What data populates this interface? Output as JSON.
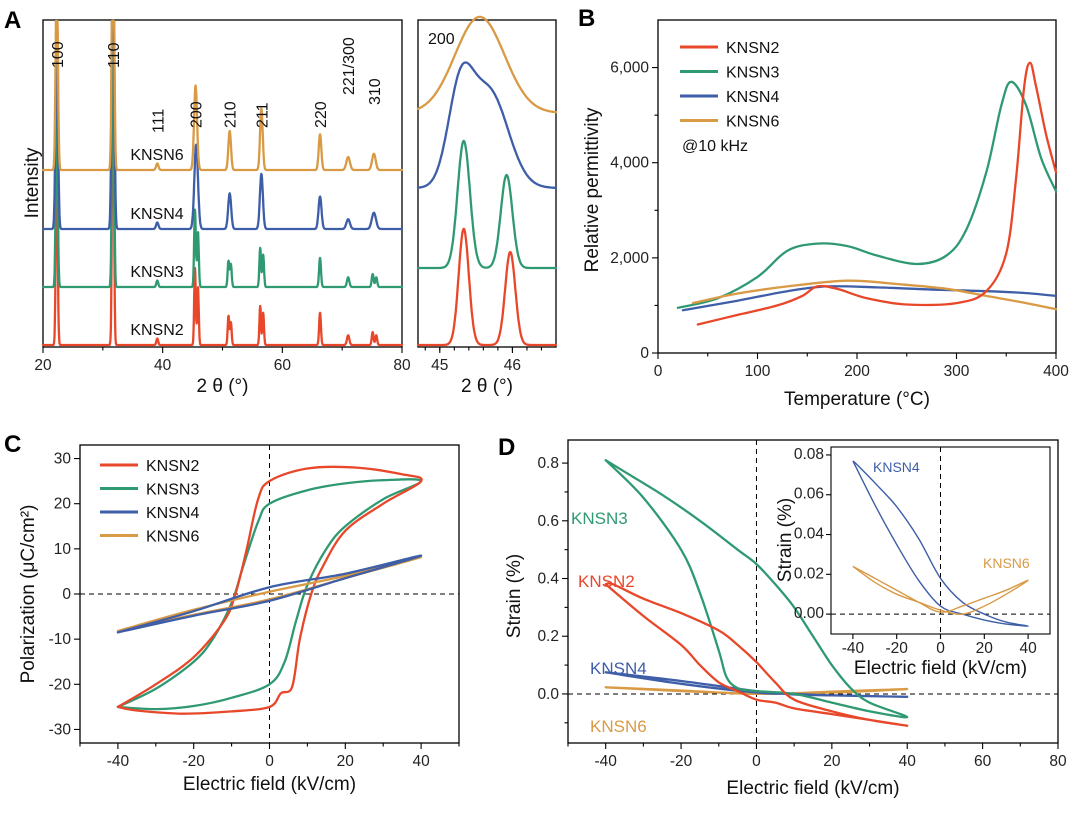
{
  "colors": {
    "KNSN2": "#e8472a",
    "KNSN3": "#2f9a72",
    "KNSN4": "#3e5ea8",
    "KNSN6": "#d99a45"
  },
  "panels": {
    "a": "A",
    "b": "B",
    "c": "C",
    "d": "D"
  },
  "chart_data": [
    {
      "id": "A-main",
      "type": "line",
      "title": "",
      "xlabel": "2 θ (°)",
      "ylabel": "Intensity",
      "xlim": [
        20,
        80
      ],
      "xticks": [
        20,
        40,
        60,
        80
      ],
      "peak_labels": [
        {
          "label": "100",
          "x": 22.3
        },
        {
          "label": "110",
          "x": 31.7
        },
        {
          "label": "111",
          "x": 39.1
        },
        {
          "label": "200",
          "x": 45.5
        },
        {
          "label": "210",
          "x": 51.2
        },
        {
          "label": "211",
          "x": 56.5
        },
        {
          "label": "220",
          "x": 66.3
        },
        {
          "label": "221/300",
          "x": 71.0
        },
        {
          "label": "310",
          "x": 75.3
        }
      ],
      "series": [
        {
          "name": "KNSN2",
          "peaks": [
            [
              22.3,
              0.62,
              0.15
            ],
            [
              31.7,
              1.0,
              0.15
            ],
            [
              39.1,
              0.02,
              0.15
            ],
            [
              45.4,
              0.24,
              0.13
            ],
            [
              45.9,
              0.18,
              0.13
            ],
            [
              51.0,
              0.09,
              0.13
            ],
            [
              51.4,
              0.07,
              0.13
            ],
            [
              56.3,
              0.12,
              0.13
            ],
            [
              56.8,
              0.1,
              0.13
            ],
            [
              66.3,
              0.1,
              0.15
            ],
            [
              71.0,
              0.03,
              0.2
            ],
            [
              75.1,
              0.04,
              0.15
            ],
            [
              75.7,
              0.03,
              0.15
            ]
          ]
        },
        {
          "name": "KNSN3",
          "peaks": [
            [
              22.3,
              0.6,
              0.16
            ],
            [
              31.7,
              1.0,
              0.16
            ],
            [
              39.1,
              0.02,
              0.16
            ],
            [
              45.4,
              0.24,
              0.14
            ],
            [
              45.9,
              0.17,
              0.14
            ],
            [
              51.0,
              0.08,
              0.14
            ],
            [
              51.4,
              0.07,
              0.14
            ],
            [
              56.3,
              0.12,
              0.14
            ],
            [
              56.8,
              0.1,
              0.14
            ],
            [
              66.3,
              0.09,
              0.16
            ],
            [
              71.0,
              0.03,
              0.2
            ],
            [
              75.1,
              0.04,
              0.16
            ],
            [
              75.7,
              0.03,
              0.16
            ]
          ]
        },
        {
          "name": "KNSN4",
          "peaks": [
            [
              22.3,
              0.6,
              0.2
            ],
            [
              31.7,
              1.0,
              0.2
            ],
            [
              39.1,
              0.02,
              0.2
            ],
            [
              45.6,
              0.26,
              0.3
            ],
            [
              51.2,
              0.11,
              0.25
            ],
            [
              56.5,
              0.17,
              0.25
            ],
            [
              66.3,
              0.1,
              0.25
            ],
            [
              71.0,
              0.03,
              0.3
            ],
            [
              75.3,
              0.05,
              0.35
            ]
          ]
        },
        {
          "name": "KNSN6",
          "peaks": [
            [
              22.3,
              0.65,
              0.18
            ],
            [
              31.7,
              1.0,
              0.18
            ],
            [
              39.1,
              0.02,
              0.2
            ],
            [
              45.5,
              0.26,
              0.25
            ],
            [
              51.2,
              0.12,
              0.22
            ],
            [
              56.5,
              0.19,
              0.22
            ],
            [
              66.3,
              0.11,
              0.22
            ],
            [
              71.0,
              0.04,
              0.3
            ],
            [
              75.3,
              0.05,
              0.3
            ]
          ]
        }
      ]
    },
    {
      "id": "A-zoom",
      "type": "line",
      "title": "200",
      "xlabel": "2 θ (°)",
      "xlim": [
        44.7,
        46.6
      ],
      "xticks": [
        45,
        46
      ],
      "series": [
        {
          "name": "KNSN2",
          "peaks": [
            [
              45.33,
              0.75,
              0.07
            ],
            [
              45.97,
              0.6,
              0.07
            ]
          ]
        },
        {
          "name": "KNSN3",
          "peaks": [
            [
              45.33,
              0.82,
              0.085
            ],
            [
              45.92,
              0.6,
              0.08
            ]
          ]
        },
        {
          "name": "KNSN4",
          "peaks": [
            [
              45.28,
              0.58,
              0.17
            ],
            [
              45.68,
              0.62,
              0.26
            ]
          ]
        },
        {
          "name": "KNSN6",
          "peaks": [
            [
              45.55,
              0.62,
              0.34
            ]
          ]
        }
      ]
    },
    {
      "id": "B",
      "type": "line",
      "title": "",
      "xlabel": "Temperature (°C)",
      "ylabel": "Relative permittivity",
      "xlim": [
        0,
        400
      ],
      "ylim": [
        0,
        7000
      ],
      "xticks": [
        0,
        100,
        200,
        300,
        400
      ],
      "yticks": [
        0,
        2000,
        4000,
        6000
      ],
      "ytick_labels": [
        "0",
        "2,000",
        "4,000",
        "6,000"
      ],
      "legend_location": "top-left",
      "annotation": "@10 kHz",
      "series": [
        {
          "name": "KNSN2",
          "x": [
            40,
            80,
            120,
            145,
            160,
            180,
            210,
            250,
            300,
            330,
            350,
            360,
            368,
            374,
            380,
            390,
            400
          ],
          "y": [
            600,
            800,
            1000,
            1200,
            1400,
            1350,
            1150,
            1020,
            1050,
            1300,
            2100,
            3700,
            5600,
            6100,
            5600,
            4600,
            3800
          ]
        },
        {
          "name": "KNSN3",
          "x": [
            20,
            60,
            100,
            130,
            160,
            190,
            220,
            260,
            290,
            310,
            330,
            345,
            355,
            370,
            385,
            400
          ],
          "y": [
            950,
            1150,
            1600,
            2150,
            2300,
            2250,
            2050,
            1870,
            2050,
            2600,
            3800,
            5200,
            5700,
            5200,
            4100,
            3400
          ]
        },
        {
          "name": "KNSN4",
          "x": [
            25,
            80,
            130,
            170,
            220,
            280,
            330,
            370,
            400
          ],
          "y": [
            900,
            1100,
            1300,
            1400,
            1380,
            1330,
            1300,
            1260,
            1200
          ]
        },
        {
          "name": "KNSN6",
          "x": [
            35,
            80,
            130,
            190,
            240,
            290,
            330,
            370,
            400
          ],
          "y": [
            1050,
            1250,
            1400,
            1520,
            1450,
            1350,
            1200,
            1050,
            920
          ]
        }
      ]
    },
    {
      "id": "C",
      "type": "line",
      "title": "",
      "xlabel": "Electric field (kV/cm)",
      "ylabel": "Polarization (μC/cm²)",
      "xlim": [
        -50,
        50
      ],
      "ylim": [
        -33,
        33
      ],
      "xticks": [
        -40,
        -20,
        0,
        20,
        40
      ],
      "yticks": [
        -30,
        -20,
        -10,
        0,
        10,
        20,
        30
      ],
      "legend_location": "top-left",
      "series": [
        {
          "name": "KNSN2",
          "x": [
            -40,
            -30,
            -20,
            -12,
            -9,
            -6,
            -3,
            0,
            10,
            23,
            35,
            40,
            30,
            20,
            14,
            11,
            8,
            6,
            3,
            0,
            -10,
            -23,
            -35,
            -40
          ],
          "y": [
            -25,
            -20,
            -14,
            -6,
            0,
            10,
            21,
            25,
            27.8,
            28,
            26.5,
            25,
            20,
            14,
            6,
            0,
            -10,
            -20.5,
            -22,
            -25,
            -26,
            -26.5,
            -25.8,
            -25
          ]
        },
        {
          "name": "KNSN3",
          "x": [
            -40,
            -30,
            -20,
            -15,
            -10,
            -7,
            -3,
            0,
            10,
            20,
            30,
            40,
            30,
            20,
            15,
            10,
            7,
            4,
            0,
            -10,
            -20,
            -30,
            -40
          ],
          "y": [
            -25,
            -21,
            -15,
            -10,
            -2,
            6,
            16,
            20,
            23,
            24.5,
            25.2,
            25,
            21,
            15,
            10,
            2,
            -6,
            -15,
            -20,
            -23,
            -24.8,
            -25.5,
            -25
          ]
        },
        {
          "name": "KNSN4",
          "x": [
            -40,
            -20,
            0,
            20,
            40,
            20,
            0,
            -20,
            -40
          ],
          "y": [
            -8.5,
            -4.8,
            -1.5,
            3.5,
            8.5,
            4.5,
            1.5,
            -3.8,
            -8.5
          ]
        },
        {
          "name": "KNSN6",
          "x": [
            -40,
            -20,
            0,
            20,
            40,
            20,
            0,
            -20,
            -40
          ],
          "y": [
            -8.2,
            -4.6,
            -1.2,
            3.5,
            8.2,
            4.0,
            0.5,
            -3.5,
            -8.2
          ]
        }
      ]
    },
    {
      "id": "D",
      "type": "line",
      "title": "",
      "xlabel": "Electric field (kV/cm)",
      "ylabel": "Strain (%)",
      "xlim": [
        -50,
        80
      ],
      "ylim": [
        -0.17,
        0.88
      ],
      "xticks": [
        -40,
        -20,
        0,
        20,
        40,
        60,
        80
      ],
      "yticks": [
        0.0,
        0.2,
        0.4,
        0.6,
        0.8
      ],
      "ytick_labels": [
        "0.0",
        "0.2",
        "0.4",
        "0.6",
        "0.8"
      ],
      "series": [
        {
          "name": "KNSN2",
          "x": [
            -40,
            -38,
            -30,
            -20,
            -10,
            -5,
            0,
            5,
            10,
            20,
            30,
            40,
            30,
            20,
            10,
            5,
            0,
            -5,
            -10,
            -15,
            -20,
            -30,
            -40
          ],
          "y": [
            0.38,
            0.38,
            0.33,
            0.28,
            0.22,
            0.17,
            0.11,
            0.04,
            -0.02,
            -0.06,
            -0.09,
            -0.11,
            -0.09,
            -0.07,
            -0.05,
            -0.03,
            -0.02,
            0.01,
            0.04,
            0.1,
            0.17,
            0.27,
            0.38
          ]
        },
        {
          "name": "KNSN3",
          "x": [
            -40,
            -35,
            -25,
            -15,
            -5,
            0,
            5,
            10,
            15,
            20,
            25,
            30,
            40,
            30,
            20,
            10,
            0,
            -5,
            -8,
            -10,
            -15,
            -20,
            -30,
            -40
          ],
          "y": [
            0.81,
            0.77,
            0.69,
            0.6,
            0.5,
            0.45,
            0.38,
            0.3,
            0.2,
            0.1,
            0.02,
            -0.03,
            -0.08,
            -0.06,
            -0.03,
            0.0,
            0.01,
            0.02,
            0.06,
            0.15,
            0.35,
            0.5,
            0.68,
            0.81
          ]
        },
        {
          "name": "KNSN4",
          "x": [
            -40,
            -20,
            0,
            10,
            20,
            40,
            20,
            10,
            0,
            -20,
            -40
          ],
          "y": [
            0.075,
            0.045,
            0.01,
            -0.002,
            -0.005,
            -0.01,
            -0.005,
            0.0,
            0.005,
            0.035,
            0.075
          ]
        },
        {
          "name": "KNSN6",
          "x": [
            -40,
            -20,
            0,
            20,
            40,
            20,
            0,
            -20,
            -40
          ],
          "y": [
            0.023,
            0.012,
            0.0,
            0.008,
            0.017,
            0.005,
            0.002,
            0.01,
            0.023
          ]
        }
      ],
      "series_labels": {
        "KNSN3": "KNSN3",
        "KNSN2": "KNSN2",
        "KNSN4": "KNSN4",
        "KNSN6": "KNSN6"
      },
      "inset": {
        "xlabel": "Electric field (kV/cm)",
        "ylabel": "Strain (%)",
        "xlim": [
          -50,
          50
        ],
        "ylim": [
          -0.01,
          0.084
        ],
        "xticks": [
          -40,
          -20,
          0,
          20,
          40
        ],
        "yticks": [
          0.0,
          0.02,
          0.04,
          0.06,
          0.08
        ],
        "ytick_labels": [
          "0.00",
          "0.02",
          "0.04",
          "0.06",
          "0.08"
        ],
        "series": [
          {
            "name": "KNSN4",
            "x": [
              -40,
              -38,
              -30,
              -20,
              -10,
              0,
              10,
              20,
              30,
              40,
              30,
              20,
              10,
              0,
              -10,
              -20,
              -30,
              -40
            ],
            "y": [
              0.077,
              0.075,
              0.066,
              0.054,
              0.038,
              0.018,
              0.006,
              0.0,
              -0.004,
              -0.006,
              -0.005,
              -0.003,
              0.0,
              0.004,
              0.017,
              0.035,
              0.055,
              0.077
            ]
          },
          {
            "name": "KNSN6",
            "x": [
              -40,
              -30,
              -20,
              -10,
              0,
              10,
              20,
              30,
              40,
              30,
              20,
              10,
              0,
              -10,
              -20,
              -30,
              -40
            ],
            "y": [
              0.024,
              0.018,
              0.012,
              0.006,
              0.001,
              0.004,
              0.008,
              0.012,
              0.017,
              0.01,
              0.004,
              0.0,
              0.002,
              0.006,
              0.01,
              0.016,
              0.024
            ]
          }
        ]
      }
    }
  ]
}
